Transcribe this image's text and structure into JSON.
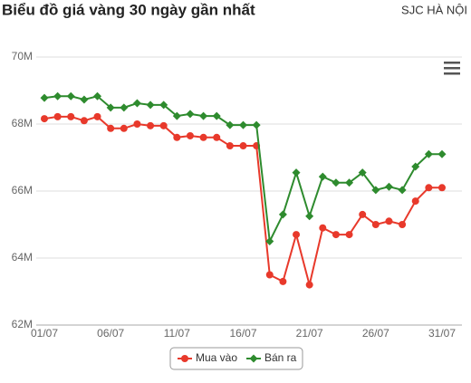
{
  "chart_data": {
    "type": "line",
    "title": "Biểu đồ giá vàng 30 ngày gần nhất",
    "subtitle": "SJC HÀ NỘI",
    "categories": [
      "01/07",
      null,
      null,
      null,
      null,
      "06/07",
      null,
      null,
      null,
      null,
      "11/07",
      null,
      null,
      null,
      null,
      "16/07",
      null,
      null,
      null,
      null,
      "21/07",
      null,
      null,
      null,
      null,
      "26/07",
      null,
      null,
      null,
      null,
      "31/07"
    ],
    "series": [
      {
        "name": "Mua vào",
        "color": "#e8392b",
        "values": [
          68.16,
          68.22,
          68.22,
          68.1,
          68.22,
          67.87,
          67.87,
          68.0,
          67.95,
          67.95,
          67.6,
          67.65,
          67.6,
          67.6,
          67.35,
          67.35,
          67.35,
          63.5,
          63.3,
          64.7,
          63.2,
          64.9,
          64.7,
          64.7,
          65.3,
          65.0,
          65.1,
          65.0,
          65.7,
          66.1,
          66.1
        ]
      },
      {
        "name": "Bán ra",
        "color": "#2e8b2e",
        "values": [
          68.78,
          68.83,
          68.83,
          68.73,
          68.83,
          68.49,
          68.49,
          68.62,
          68.57,
          68.57,
          68.24,
          68.3,
          68.24,
          68.24,
          67.97,
          67.97,
          67.97,
          64.5,
          65.3,
          66.55,
          65.25,
          66.43,
          66.25,
          66.25,
          66.55,
          66.03,
          66.13,
          66.03,
          66.73,
          67.1,
          67.1
        ]
      }
    ],
    "ylim": [
      62,
      70
    ],
    "yticks": [
      {
        "value": 62,
        "label": "62M"
      },
      {
        "value": 64,
        "label": "64M"
      },
      {
        "value": 66,
        "label": "66M"
      },
      {
        "value": 68,
        "label": "68M"
      },
      {
        "value": 70,
        "label": "70M"
      }
    ],
    "grid": true
  }
}
